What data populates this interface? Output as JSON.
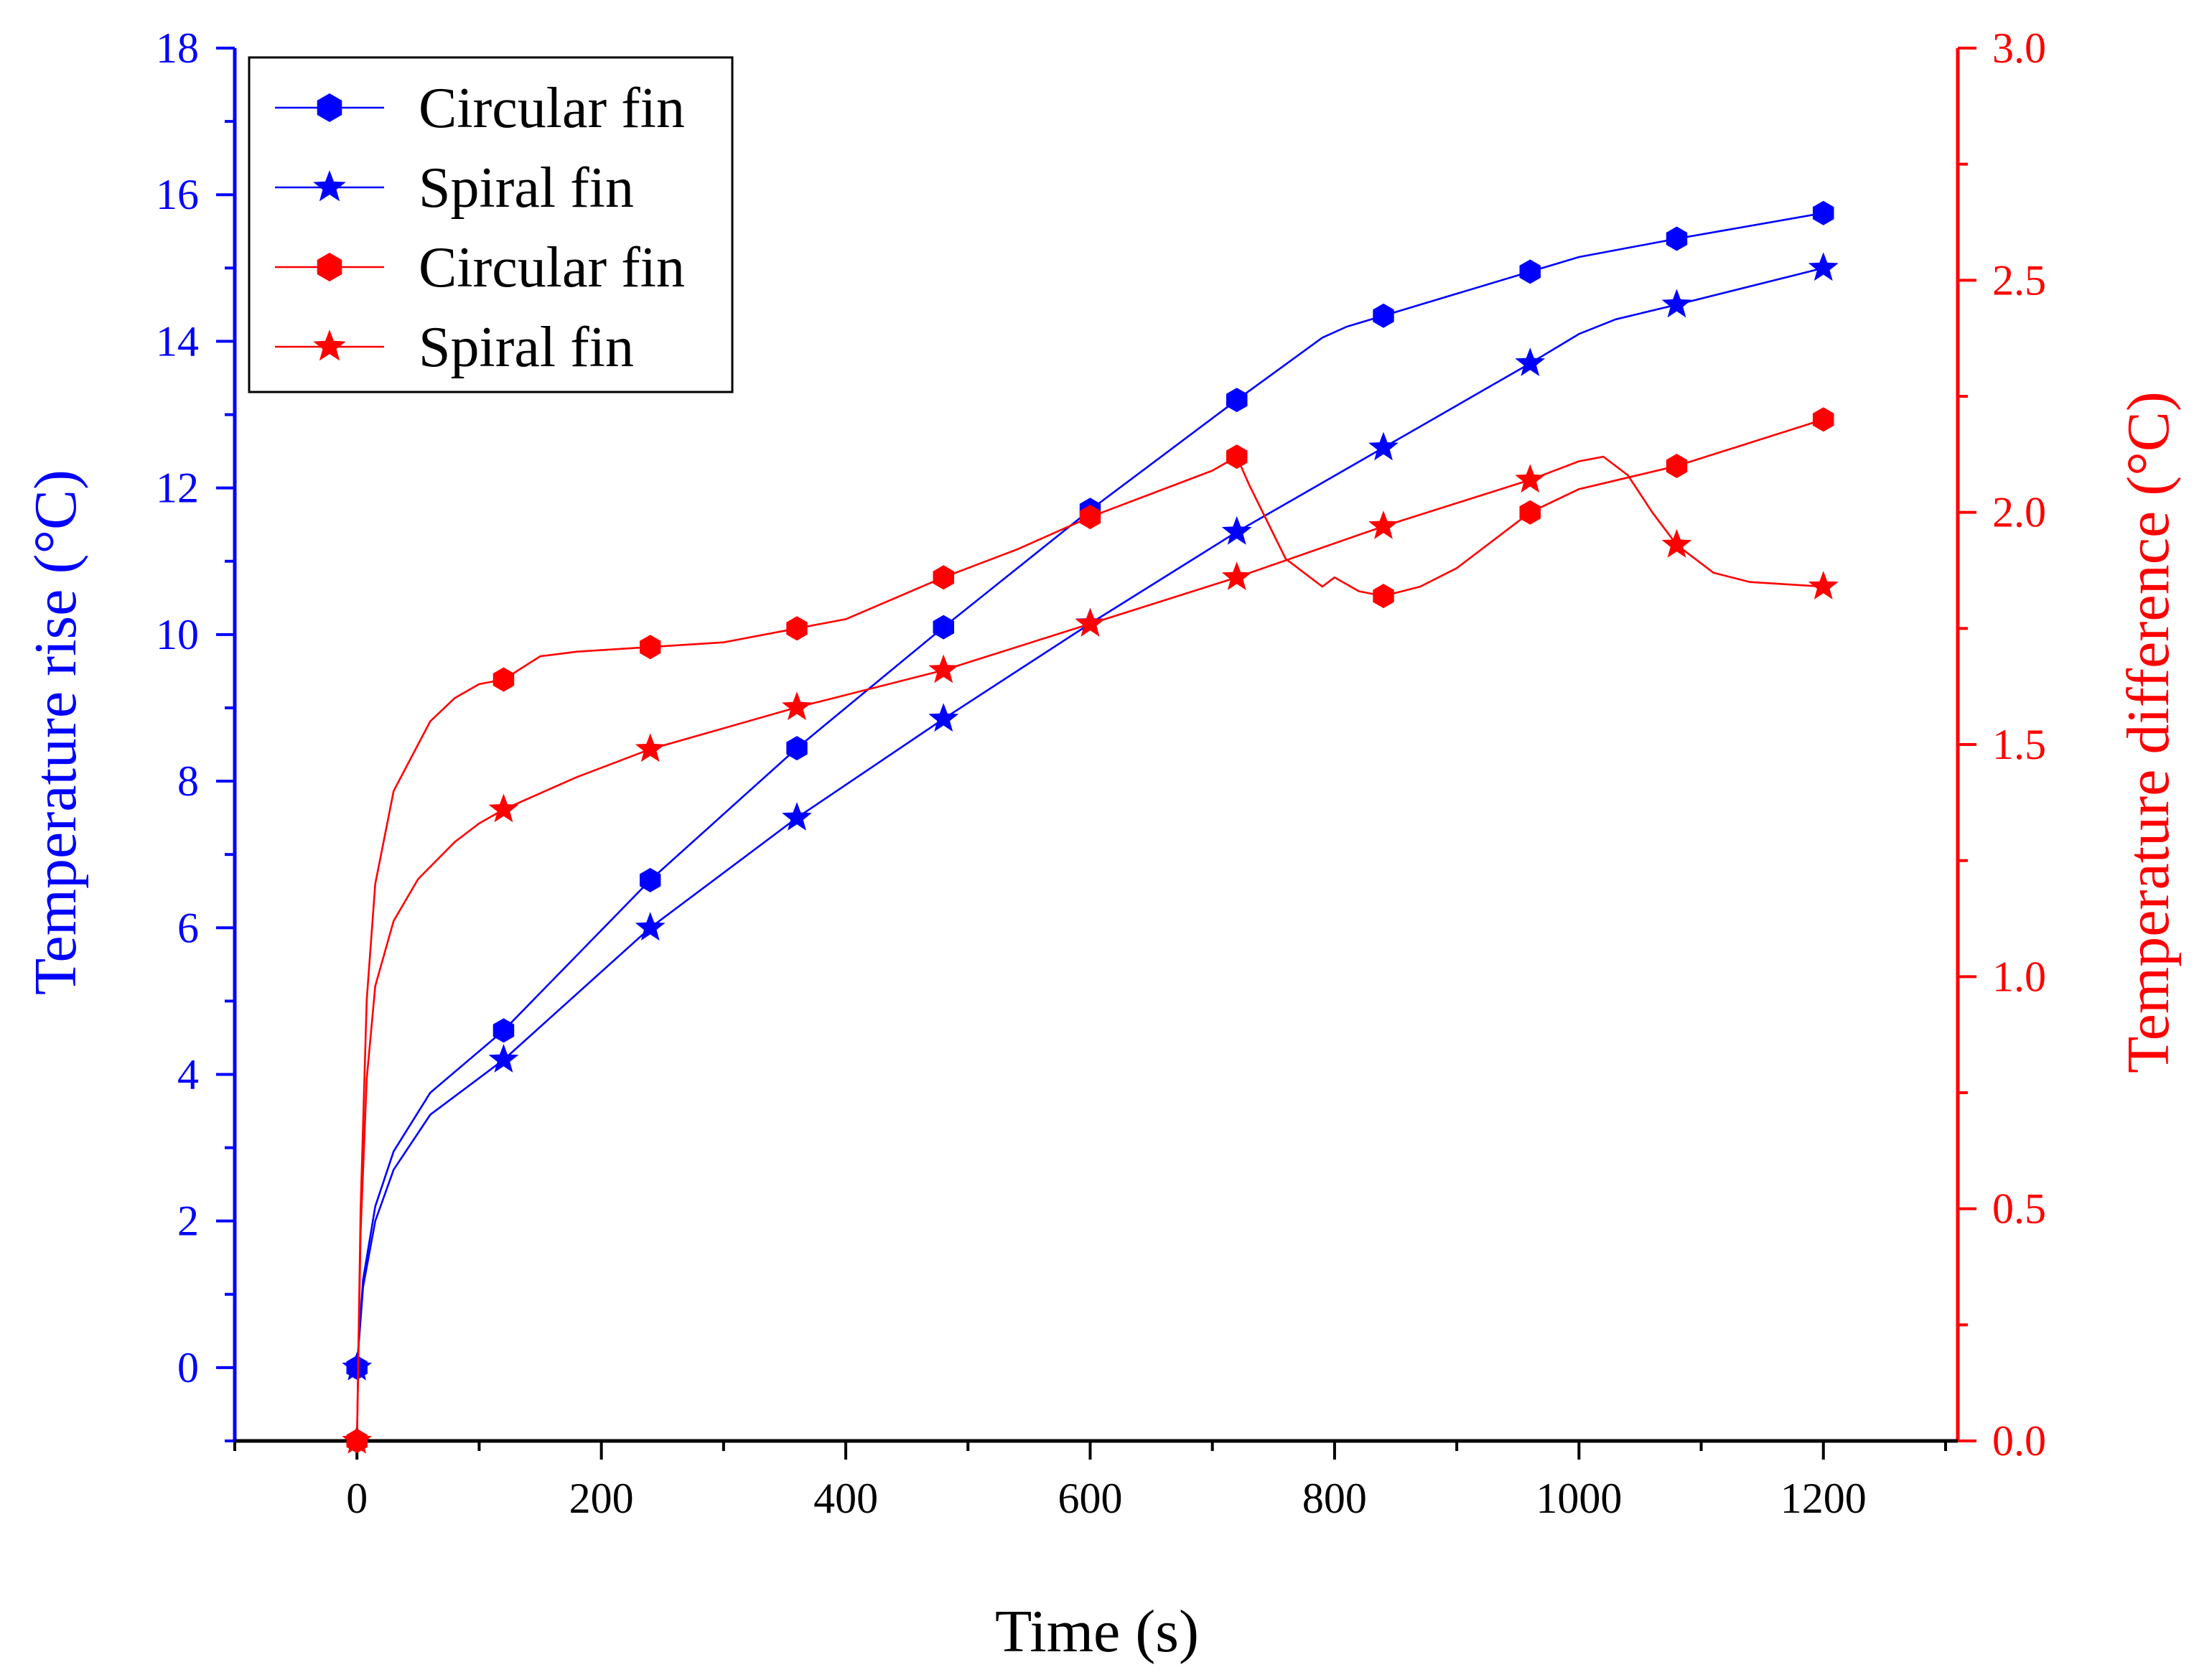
{
  "colors": {
    "primary": "#0000FF",
    "secondary": "#FF0000",
    "text": "#000000"
  },
  "chart_data": {
    "type": "line",
    "title": "",
    "xlabel": "Time (s)",
    "ylabel_left": "Temperature rise (°C)",
    "ylabel_right": "Temperature difference (°C)",
    "xlim": [
      -100,
      1310
    ],
    "ylim_left": [
      -1,
      18
    ],
    "ylim_right": [
      0,
      3
    ],
    "x_ticks": [
      0,
      200,
      400,
      600,
      800,
      1000,
      1200
    ],
    "x_tick_labels": [
      "0",
      "200",
      "400",
      "600",
      "800",
      "1000",
      "1200"
    ],
    "y_left_ticks": [
      0,
      2,
      4,
      6,
      8,
      10,
      12,
      14,
      16,
      18
    ],
    "y_left_tick_labels": [
      "0",
      "2",
      "4",
      "6",
      "8",
      "10",
      "12",
      "14",
      "16",
      "18"
    ],
    "y_right_ticks": [
      0,
      0.5,
      1,
      1.5,
      2,
      2.5,
      3
    ],
    "y_right_tick_labels": [
      "0.0",
      "0.5",
      "1.0",
      "1.5",
      "2.0",
      "2.5",
      "3.0"
    ],
    "legend_position": "top-left",
    "grid": false,
    "series": [
      {
        "name": "Circular fin",
        "axis": "left",
        "color": "#0000FF",
        "marker": "hexagon",
        "x": [
          0,
          120,
          240,
          360,
          480,
          600,
          720,
          840,
          960,
          1080,
          1200
        ],
        "y": [
          0,
          4.6,
          6.65,
          8.45,
          10.1,
          11.7,
          13.2,
          14.35,
          14.95,
          15.4,
          15.75
        ],
        "line_x": [
          0,
          5,
          15,
          30,
          60,
          120,
          240,
          360,
          480,
          600,
          720,
          790,
          810,
          840,
          960,
          1000,
          1080,
          1200
        ],
        "line_y": [
          0,
          1.2,
          2.2,
          2.95,
          3.75,
          4.6,
          6.65,
          8.45,
          10.1,
          11.7,
          13.2,
          14.05,
          14.2,
          14.35,
          14.95,
          15.15,
          15.4,
          15.75
        ]
      },
      {
        "name": "Spiral fin",
        "axis": "left",
        "color": "#0000FF",
        "marker": "star",
        "x": [
          0,
          120,
          240,
          360,
          480,
          600,
          720,
          840,
          960,
          1080,
          1200
        ],
        "y": [
          0,
          4.2,
          6.0,
          7.5,
          8.85,
          10.15,
          11.4,
          12.55,
          13.7,
          14.5,
          15.0
        ],
        "line_x": [
          0,
          5,
          15,
          30,
          60,
          120,
          240,
          360,
          480,
          600,
          720,
          840,
          960,
          1000,
          1030,
          1080,
          1200
        ],
        "line_y": [
          0,
          1.1,
          2.0,
          2.7,
          3.45,
          4.2,
          6.0,
          7.5,
          8.85,
          10.15,
          11.4,
          12.55,
          13.7,
          14.1,
          14.3,
          14.5,
          15.0
        ]
      },
      {
        "name": "Circular fin",
        "axis": "right",
        "color": "#FF0000",
        "marker": "hexagon",
        "x": [
          0,
          120,
          240,
          360,
          480,
          600,
          720,
          840,
          960,
          1080,
          1200
        ],
        "y": [
          0,
          1.64,
          1.71,
          1.75,
          1.86,
          1.99,
          2.12,
          1.82,
          2.0,
          2.1,
          2.2
        ],
        "line_x": [
          0,
          3,
          8,
          15,
          30,
          50,
          60,
          80,
          100,
          120,
          150,
          180,
          240,
          300,
          360,
          400,
          480,
          540,
          600,
          700,
          720,
          730,
          760,
          790,
          800,
          820,
          840,
          870,
          900,
          960,
          1000,
          1080,
          1200
        ],
        "line_y": [
          0,
          0.5,
          0.95,
          1.2,
          1.4,
          1.5,
          1.55,
          1.6,
          1.63,
          1.64,
          1.69,
          1.7,
          1.71,
          1.72,
          1.75,
          1.77,
          1.86,
          1.92,
          1.99,
          2.09,
          2.12,
          2.06,
          1.9,
          1.84,
          1.86,
          1.83,
          1.82,
          1.84,
          1.88,
          2.0,
          2.05,
          2.1,
          2.2
        ]
      },
      {
        "name": "Spiral fin",
        "axis": "right",
        "color": "#FF0000",
        "marker": "star",
        "x": [
          0,
          120,
          240,
          360,
          480,
          600,
          720,
          840,
          960,
          1080,
          1200
        ],
        "y": [
          0,
          1.36,
          1.49,
          1.58,
          1.66,
          1.76,
          1.86,
          1.97,
          2.07,
          1.93,
          1.84
        ],
        "line_x": [
          0,
          3,
          8,
          15,
          30,
          50,
          80,
          100,
          120,
          180,
          240,
          360,
          480,
          600,
          720,
          840,
          960,
          1000,
          1020,
          1040,
          1060,
          1080,
          1110,
          1140,
          1200
        ],
        "line_y": [
          0,
          0.45,
          0.78,
          0.98,
          1.12,
          1.21,
          1.29,
          1.33,
          1.36,
          1.43,
          1.49,
          1.58,
          1.66,
          1.76,
          1.86,
          1.97,
          2.07,
          2.11,
          2.12,
          2.08,
          2.0,
          1.93,
          1.87,
          1.85,
          1.84
        ]
      }
    ]
  }
}
